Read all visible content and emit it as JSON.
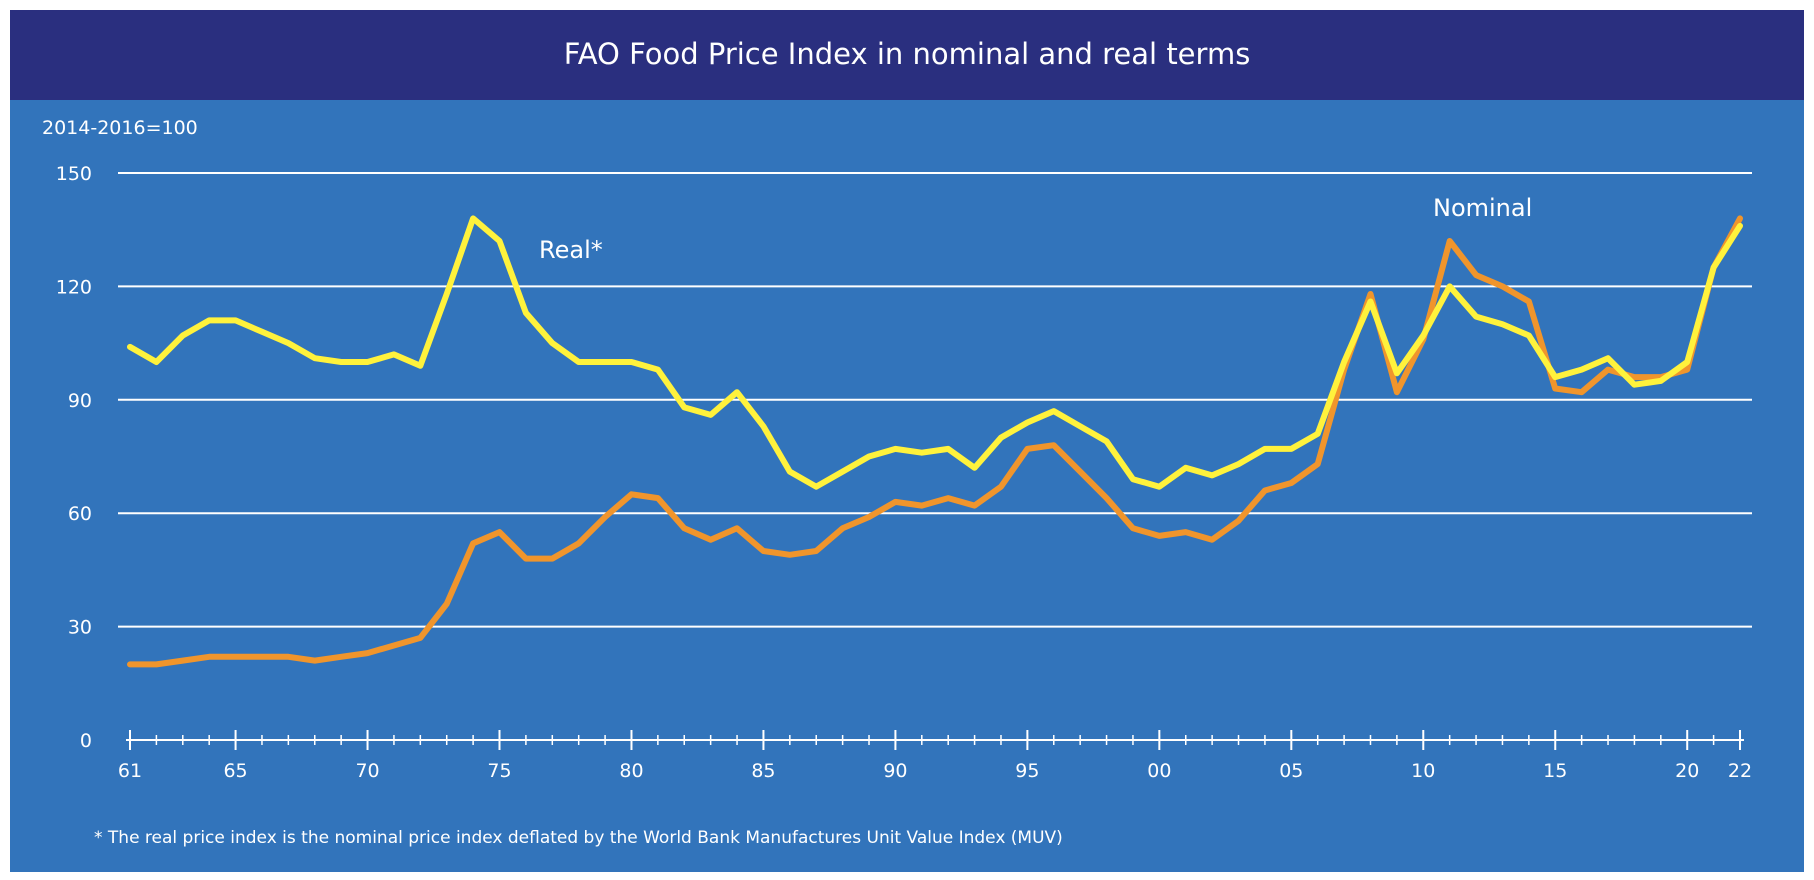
{
  "chart_data": {
    "type": "line",
    "title": "FAO Food Price Index in nominal and real terms",
    "ylabel": "2014-2016=100",
    "ylim": [
      0,
      150
    ],
    "y_ticks": [
      0,
      30,
      60,
      90,
      120,
      150
    ],
    "y_tick_labels": [
      "0",
      "30",
      "60",
      "90",
      "120",
      "150"
    ],
    "xlim": [
      1961,
      2022
    ],
    "x_ticks": [
      1961,
      1965,
      1970,
      1975,
      1980,
      1985,
      1990,
      1995,
      2000,
      2005,
      2010,
      2015,
      2020,
      2022
    ],
    "x_tick_labels": [
      "61",
      "65",
      "70",
      "75",
      "80",
      "85",
      "90",
      "95",
      "00",
      "05",
      "10",
      "15",
      "20",
      "22"
    ],
    "grid": "horizontal",
    "x": [
      1961,
      1962,
      1963,
      1964,
      1965,
      1966,
      1967,
      1968,
      1969,
      1970,
      1971,
      1972,
      1973,
      1974,
      1975,
      1976,
      1977,
      1978,
      1979,
      1980,
      1981,
      1982,
      1983,
      1984,
      1985,
      1986,
      1987,
      1988,
      1989,
      1990,
      1991,
      1992,
      1993,
      1994,
      1995,
      1996,
      1997,
      1998,
      1999,
      2000,
      2001,
      2002,
      2003,
      2004,
      2005,
      2006,
      2007,
      2008,
      2009,
      2010,
      2011,
      2012,
      2013,
      2014,
      2015,
      2016,
      2017,
      2018,
      2019,
      2020,
      2021,
      2022
    ],
    "series": [
      {
        "name": "Real*",
        "color": "#fff23c",
        "values": [
          104,
          100,
          107,
          111,
          111,
          108,
          105,
          101,
          100,
          100,
          102,
          99,
          118,
          138,
          132,
          113,
          105,
          100,
          100,
          100,
          98,
          88,
          86,
          92,
          83,
          71,
          67,
          71,
          75,
          77,
          76,
          77,
          72,
          80,
          84,
          87,
          83,
          79,
          69,
          67,
          72,
          70,
          73,
          77,
          77,
          81,
          100,
          116,
          97,
          107,
          120,
          112,
          110,
          107,
          96,
          98,
          101,
          94,
          95,
          100,
          125,
          136
        ]
      },
      {
        "name": "Nominal",
        "color": "#f0952c",
        "values": [
          20,
          20,
          21,
          22,
          22,
          22,
          22,
          21,
          22,
          23,
          25,
          27,
          36,
          52,
          55,
          48,
          48,
          52,
          59,
          65,
          64,
          56,
          53,
          56,
          50,
          49,
          50,
          56,
          59,
          63,
          62,
          64,
          62,
          67,
          77,
          78,
          71,
          64,
          56,
          54,
          55,
          53,
          58,
          66,
          68,
          73,
          98,
          118,
          92,
          106,
          132,
          123,
          120,
          116,
          93,
          92,
          98,
          96,
          96,
          98,
          125,
          138
        ]
      }
    ],
    "annotations": [
      "Real*",
      "Nominal"
    ],
    "footnote": "* The real price index is the nominal price index deflated by the World Bank Manufactures Unit Value Index (MUV)",
    "colors": {
      "header_bg": "#2a2f7f",
      "panel_bg": "#3274bb",
      "grid": "#ffffff"
    }
  }
}
